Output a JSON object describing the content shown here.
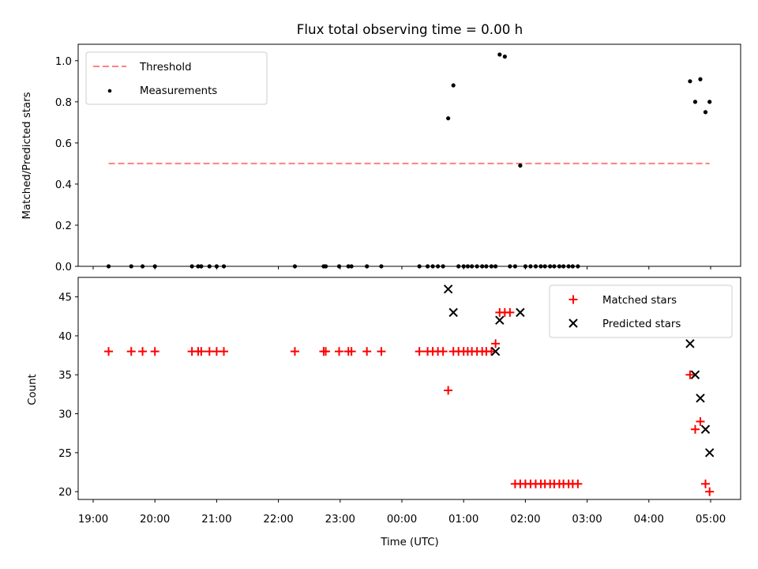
{
  "chart_data": [
    {
      "type": "scatter",
      "title": "Flux total observing time = 0.00 h",
      "xlabel": "",
      "ylabel": "Matched/Predicted stars",
      "xlim": [
        "19:00",
        "05:00"
      ],
      "ylim": [
        0,
        1.08
      ],
      "yticks": [
        "0.0",
        "0.2",
        "0.4",
        "0.6",
        "0.8",
        "1.0"
      ],
      "grid": false,
      "legend": "top-left",
      "threshold": {
        "name": "Threshold",
        "value": 0.5,
        "x_start": "19:15",
        "x_end": "04:59",
        "color": "#ff8080",
        "style": "dashed"
      },
      "series": [
        {
          "name": "Measurements",
          "marker": "dot",
          "color": "#000000",
          "points": [
            [
              "19:15",
              0
            ],
            [
              "19:37",
              0
            ],
            [
              "19:48",
              0
            ],
            [
              "20:00",
              0
            ],
            [
              "20:36",
              0
            ],
            [
              "20:42",
              0
            ],
            [
              "20:45",
              0
            ],
            [
              "20:53",
              0
            ],
            [
              "21:00",
              0
            ],
            [
              "21:07",
              0
            ],
            [
              "22:16",
              0
            ],
            [
              "22:44",
              0
            ],
            [
              "22:46",
              0
            ],
            [
              "22:59",
              0
            ],
            [
              "23:08",
              0
            ],
            [
              "23:11",
              0
            ],
            [
              "23:26",
              0
            ],
            [
              "23:40",
              0
            ],
            [
              "00:17",
              0
            ],
            [
              "00:25",
              0
            ],
            [
              "00:30",
              0
            ],
            [
              "00:35",
              0
            ],
            [
              "00:40",
              0
            ],
            [
              "00:45",
              0.72
            ],
            [
              "00:50",
              0.88
            ],
            [
              "00:55",
              0
            ],
            [
              "01:00",
              0
            ],
            [
              "01:04",
              0
            ],
            [
              "01:08",
              0
            ],
            [
              "01:13",
              0
            ],
            [
              "01:18",
              0
            ],
            [
              "01:22",
              0
            ],
            [
              "01:27",
              0
            ],
            [
              "01:31",
              0
            ],
            [
              "01:35",
              1.03
            ],
            [
              "01:40",
              1.02
            ],
            [
              "01:45",
              0
            ],
            [
              "01:50",
              0
            ],
            [
              "01:55",
              0.49
            ],
            [
              "02:00",
              0
            ],
            [
              "02:05",
              0
            ],
            [
              "02:10",
              0
            ],
            [
              "02:15",
              0
            ],
            [
              "02:19",
              0
            ],
            [
              "02:24",
              0
            ],
            [
              "02:28",
              0
            ],
            [
              "02:33",
              0
            ],
            [
              "02:37",
              0
            ],
            [
              "02:42",
              0
            ],
            [
              "02:46",
              0
            ],
            [
              "02:51",
              0
            ],
            [
              "04:40",
              0.9
            ],
            [
              "04:45",
              0.8
            ],
            [
              "04:50",
              0.91
            ],
            [
              "04:55",
              0.75
            ],
            [
              "04:59",
              0.8
            ]
          ]
        }
      ]
    },
    {
      "type": "scatter",
      "title": "",
      "xlabel": "Time (UTC)",
      "ylabel": "Count",
      "xlim": [
        "19:00",
        "05:00"
      ],
      "xticks": [
        "19:00",
        "20:00",
        "21:00",
        "22:00",
        "23:00",
        "00:00",
        "01:00",
        "02:00",
        "03:00",
        "04:00",
        "05:00"
      ],
      "ylim": [
        19,
        47.5
      ],
      "yticks": [
        "20",
        "25",
        "30",
        "35",
        "40",
        "45"
      ],
      "grid": false,
      "legend": "top-right",
      "series": [
        {
          "name": "Matched stars",
          "marker": "plus",
          "color": "#ff0000",
          "points": [
            [
              "19:15",
              38
            ],
            [
              "19:37",
              38
            ],
            [
              "19:48",
              38
            ],
            [
              "20:00",
              38
            ],
            [
              "20:36",
              38
            ],
            [
              "20:42",
              38
            ],
            [
              "20:45",
              38
            ],
            [
              "20:53",
              38
            ],
            [
              "21:00",
              38
            ],
            [
              "21:07",
              38
            ],
            [
              "22:16",
              38
            ],
            [
              "22:44",
              38
            ],
            [
              "22:46",
              38
            ],
            [
              "22:59",
              38
            ],
            [
              "23:08",
              38
            ],
            [
              "23:11",
              38
            ],
            [
              "23:26",
              38
            ],
            [
              "23:40",
              38
            ],
            [
              "00:17",
              38
            ],
            [
              "00:25",
              38
            ],
            [
              "00:30",
              38
            ],
            [
              "00:35",
              38
            ],
            [
              "00:40",
              38
            ],
            [
              "00:45",
              33
            ],
            [
              "00:50",
              38
            ],
            [
              "00:55",
              38
            ],
            [
              "01:00",
              38
            ],
            [
              "01:04",
              38
            ],
            [
              "01:08",
              38
            ],
            [
              "01:13",
              38
            ],
            [
              "01:18",
              38
            ],
            [
              "01:22",
              38
            ],
            [
              "01:27",
              38
            ],
            [
              "01:31",
              39
            ],
            [
              "01:35",
              43
            ],
            [
              "01:40",
              43
            ],
            [
              "01:45",
              43
            ],
            [
              "01:50",
              21
            ],
            [
              "01:55",
              21
            ],
            [
              "02:00",
              21
            ],
            [
              "02:05",
              21
            ],
            [
              "02:10",
              21
            ],
            [
              "02:15",
              21
            ],
            [
              "02:19",
              21
            ],
            [
              "02:24",
              21
            ],
            [
              "02:28",
              21
            ],
            [
              "02:33",
              21
            ],
            [
              "02:37",
              21
            ],
            [
              "02:42",
              21
            ],
            [
              "02:46",
              21
            ],
            [
              "02:51",
              21
            ],
            [
              "04:40",
              35
            ],
            [
              "04:45",
              28
            ],
            [
              "04:50",
              29
            ],
            [
              "04:55",
              21
            ],
            [
              "04:59",
              20
            ]
          ]
        },
        {
          "name": "Predicted stars",
          "marker": "x",
          "color": "#000000",
          "points": [
            [
              "00:45",
              46
            ],
            [
              "00:50",
              43
            ],
            [
              "01:31",
              38
            ],
            [
              "01:35",
              42
            ],
            [
              "01:55",
              43
            ],
            [
              "04:40",
              39
            ],
            [
              "04:45",
              35
            ],
            [
              "04:50",
              32
            ],
            [
              "04:55",
              28
            ],
            [
              "04:59",
              25
            ]
          ]
        }
      ]
    }
  ]
}
